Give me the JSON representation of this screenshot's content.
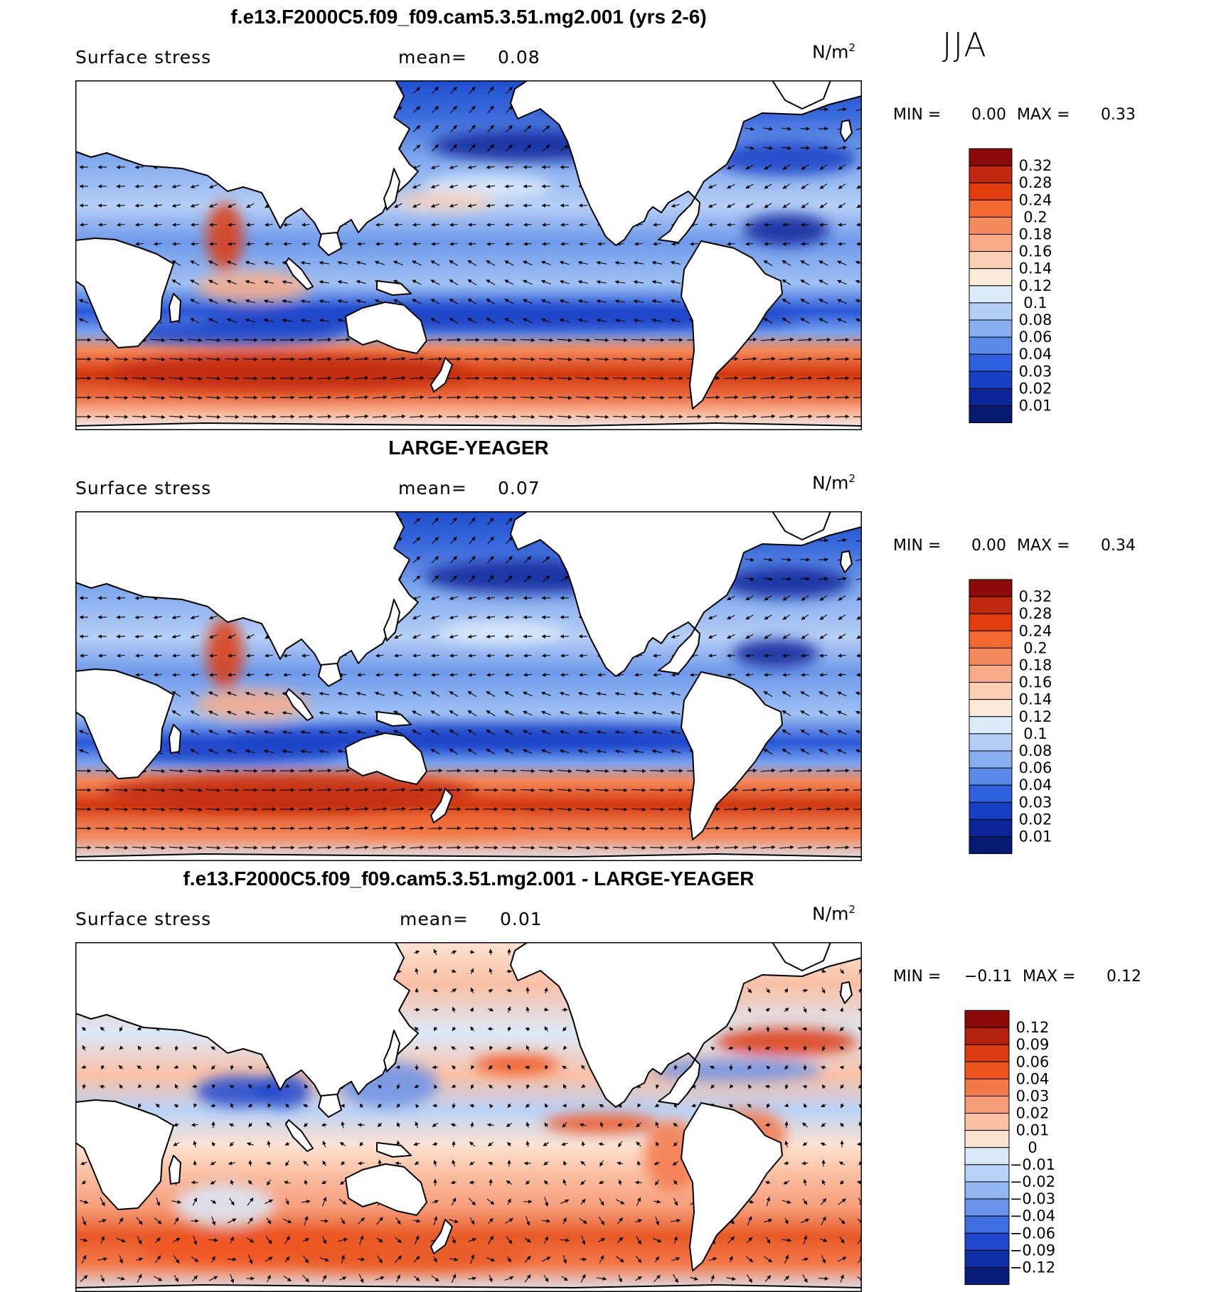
{
  "figure": {
    "season": "JJA"
  },
  "panels": [
    {
      "title": "f.e13.F2000C5.f09_f09.cam5.3.51.mg2.001 (yrs 2-6)",
      "variable": "Surface stress",
      "mean_label": "mean=",
      "mean_value": "0.08",
      "units_base": "N/m",
      "units_exp": "2",
      "min_label": "MIN =",
      "min_value": "0.00",
      "max_label": "MAX =",
      "max_value": "0.33",
      "levels": [
        "0.32",
        "0.28",
        "0.24",
        "0.2",
        "0.18",
        "0.16",
        "0.14",
        "0.12",
        "0.1",
        "0.08",
        "0.06",
        "0.04",
        "0.03",
        "0.02",
        "0.01"
      ],
      "colors": [
        "#8c0a0a",
        "#c02810",
        "#e03c0e",
        "#f26a32",
        "#f58a5c",
        "#f9ab88",
        "#fbcfb5",
        "#fdebd9",
        "#dcebfa",
        "#b4cff6",
        "#88aff0",
        "#5a8ae8",
        "#2f61de",
        "#1640c4",
        "#0a2699",
        "#051a73"
      ]
    },
    {
      "title": "LARGE-YEAGER",
      "variable": "Surface stress",
      "mean_label": "mean=",
      "mean_value": "0.07",
      "units_base": "N/m",
      "units_exp": "2",
      "min_label": "MIN =",
      "min_value": "0.00",
      "max_label": "MAX =",
      "max_value": "0.34",
      "levels": [
        "0.32",
        "0.28",
        "0.24",
        "0.2",
        "0.18",
        "0.16",
        "0.14",
        "0.12",
        "0.1",
        "0.08",
        "0.06",
        "0.04",
        "0.03",
        "0.02",
        "0.01"
      ],
      "colors": [
        "#8c0a0a",
        "#c02810",
        "#e03c0e",
        "#f26a32",
        "#f58a5c",
        "#f9ab88",
        "#fbcfb5",
        "#fdebd9",
        "#dcebfa",
        "#b4cff6",
        "#88aff0",
        "#5a8ae8",
        "#2f61de",
        "#1640c4",
        "#0a2699",
        "#051a73"
      ]
    },
    {
      "title": "f.e13.F2000C5.f09_f09.cam5.3.51.mg2.001 - LARGE-YEAGER",
      "variable": "Surface stress",
      "mean_label": "mean=",
      "mean_value": "0.01",
      "units_base": "N/m",
      "units_exp": "2",
      "min_label": "MIN =",
      "min_value": "−0.11",
      "max_label": "MAX =",
      "max_value": "0.12",
      "levels": [
        "0.12",
        "0.09",
        "0.06",
        "0.04",
        "0.03",
        "0.02",
        "0.01",
        "0",
        "−0.01",
        "−0.02",
        "−0.03",
        "−0.04",
        "−0.06",
        "−0.09",
        "−0.12"
      ],
      "colors": [
        "#8c0a0a",
        "#b4200e",
        "#dc3a10",
        "#f0541e",
        "#f4784a",
        "#f79c78",
        "#fac0a4",
        "#fde3d2",
        "#dbe9fa",
        "#bad2f6",
        "#93b5f1",
        "#6a93ea",
        "#3f6de2",
        "#1e49cf",
        "#0f2fa8",
        "#061d7a"
      ]
    }
  ],
  "chart_data": [
    {
      "type": "heatmap",
      "title": "f.e13.F2000C5.f09_f09.cam5.3.51.mg2.001 (yrs 2-6)",
      "variable": "Surface stress",
      "units": "N/m2",
      "mean": 0.08,
      "min": 0.0,
      "max": 0.33,
      "contour_levels": [
        0.01,
        0.02,
        0.03,
        0.04,
        0.06,
        0.08,
        0.1,
        0.12,
        0.14,
        0.16,
        0.18,
        0.2,
        0.24,
        0.28,
        0.32
      ],
      "overlay": "surface stress vectors"
    },
    {
      "type": "heatmap",
      "title": "LARGE-YEAGER",
      "variable": "Surface stress",
      "units": "N/m2",
      "mean": 0.07,
      "min": 0.0,
      "max": 0.34,
      "contour_levels": [
        0.01,
        0.02,
        0.03,
        0.04,
        0.06,
        0.08,
        0.1,
        0.12,
        0.14,
        0.16,
        0.18,
        0.2,
        0.24,
        0.28,
        0.32
      ],
      "overlay": "surface stress vectors"
    },
    {
      "type": "heatmap",
      "title": "f.e13.F2000C5.f09_f09.cam5.3.51.mg2.001 - LARGE-YEAGER",
      "variable": "Surface stress",
      "units": "N/m2",
      "mean": 0.01,
      "min": -0.11,
      "max": 0.12,
      "contour_levels": [
        -0.12,
        -0.09,
        -0.06,
        -0.04,
        -0.03,
        -0.02,
        -0.01,
        0,
        0.01,
        0.02,
        0.03,
        0.04,
        0.06,
        0.09,
        0.12
      ],
      "overlay": "difference stress vectors"
    }
  ]
}
